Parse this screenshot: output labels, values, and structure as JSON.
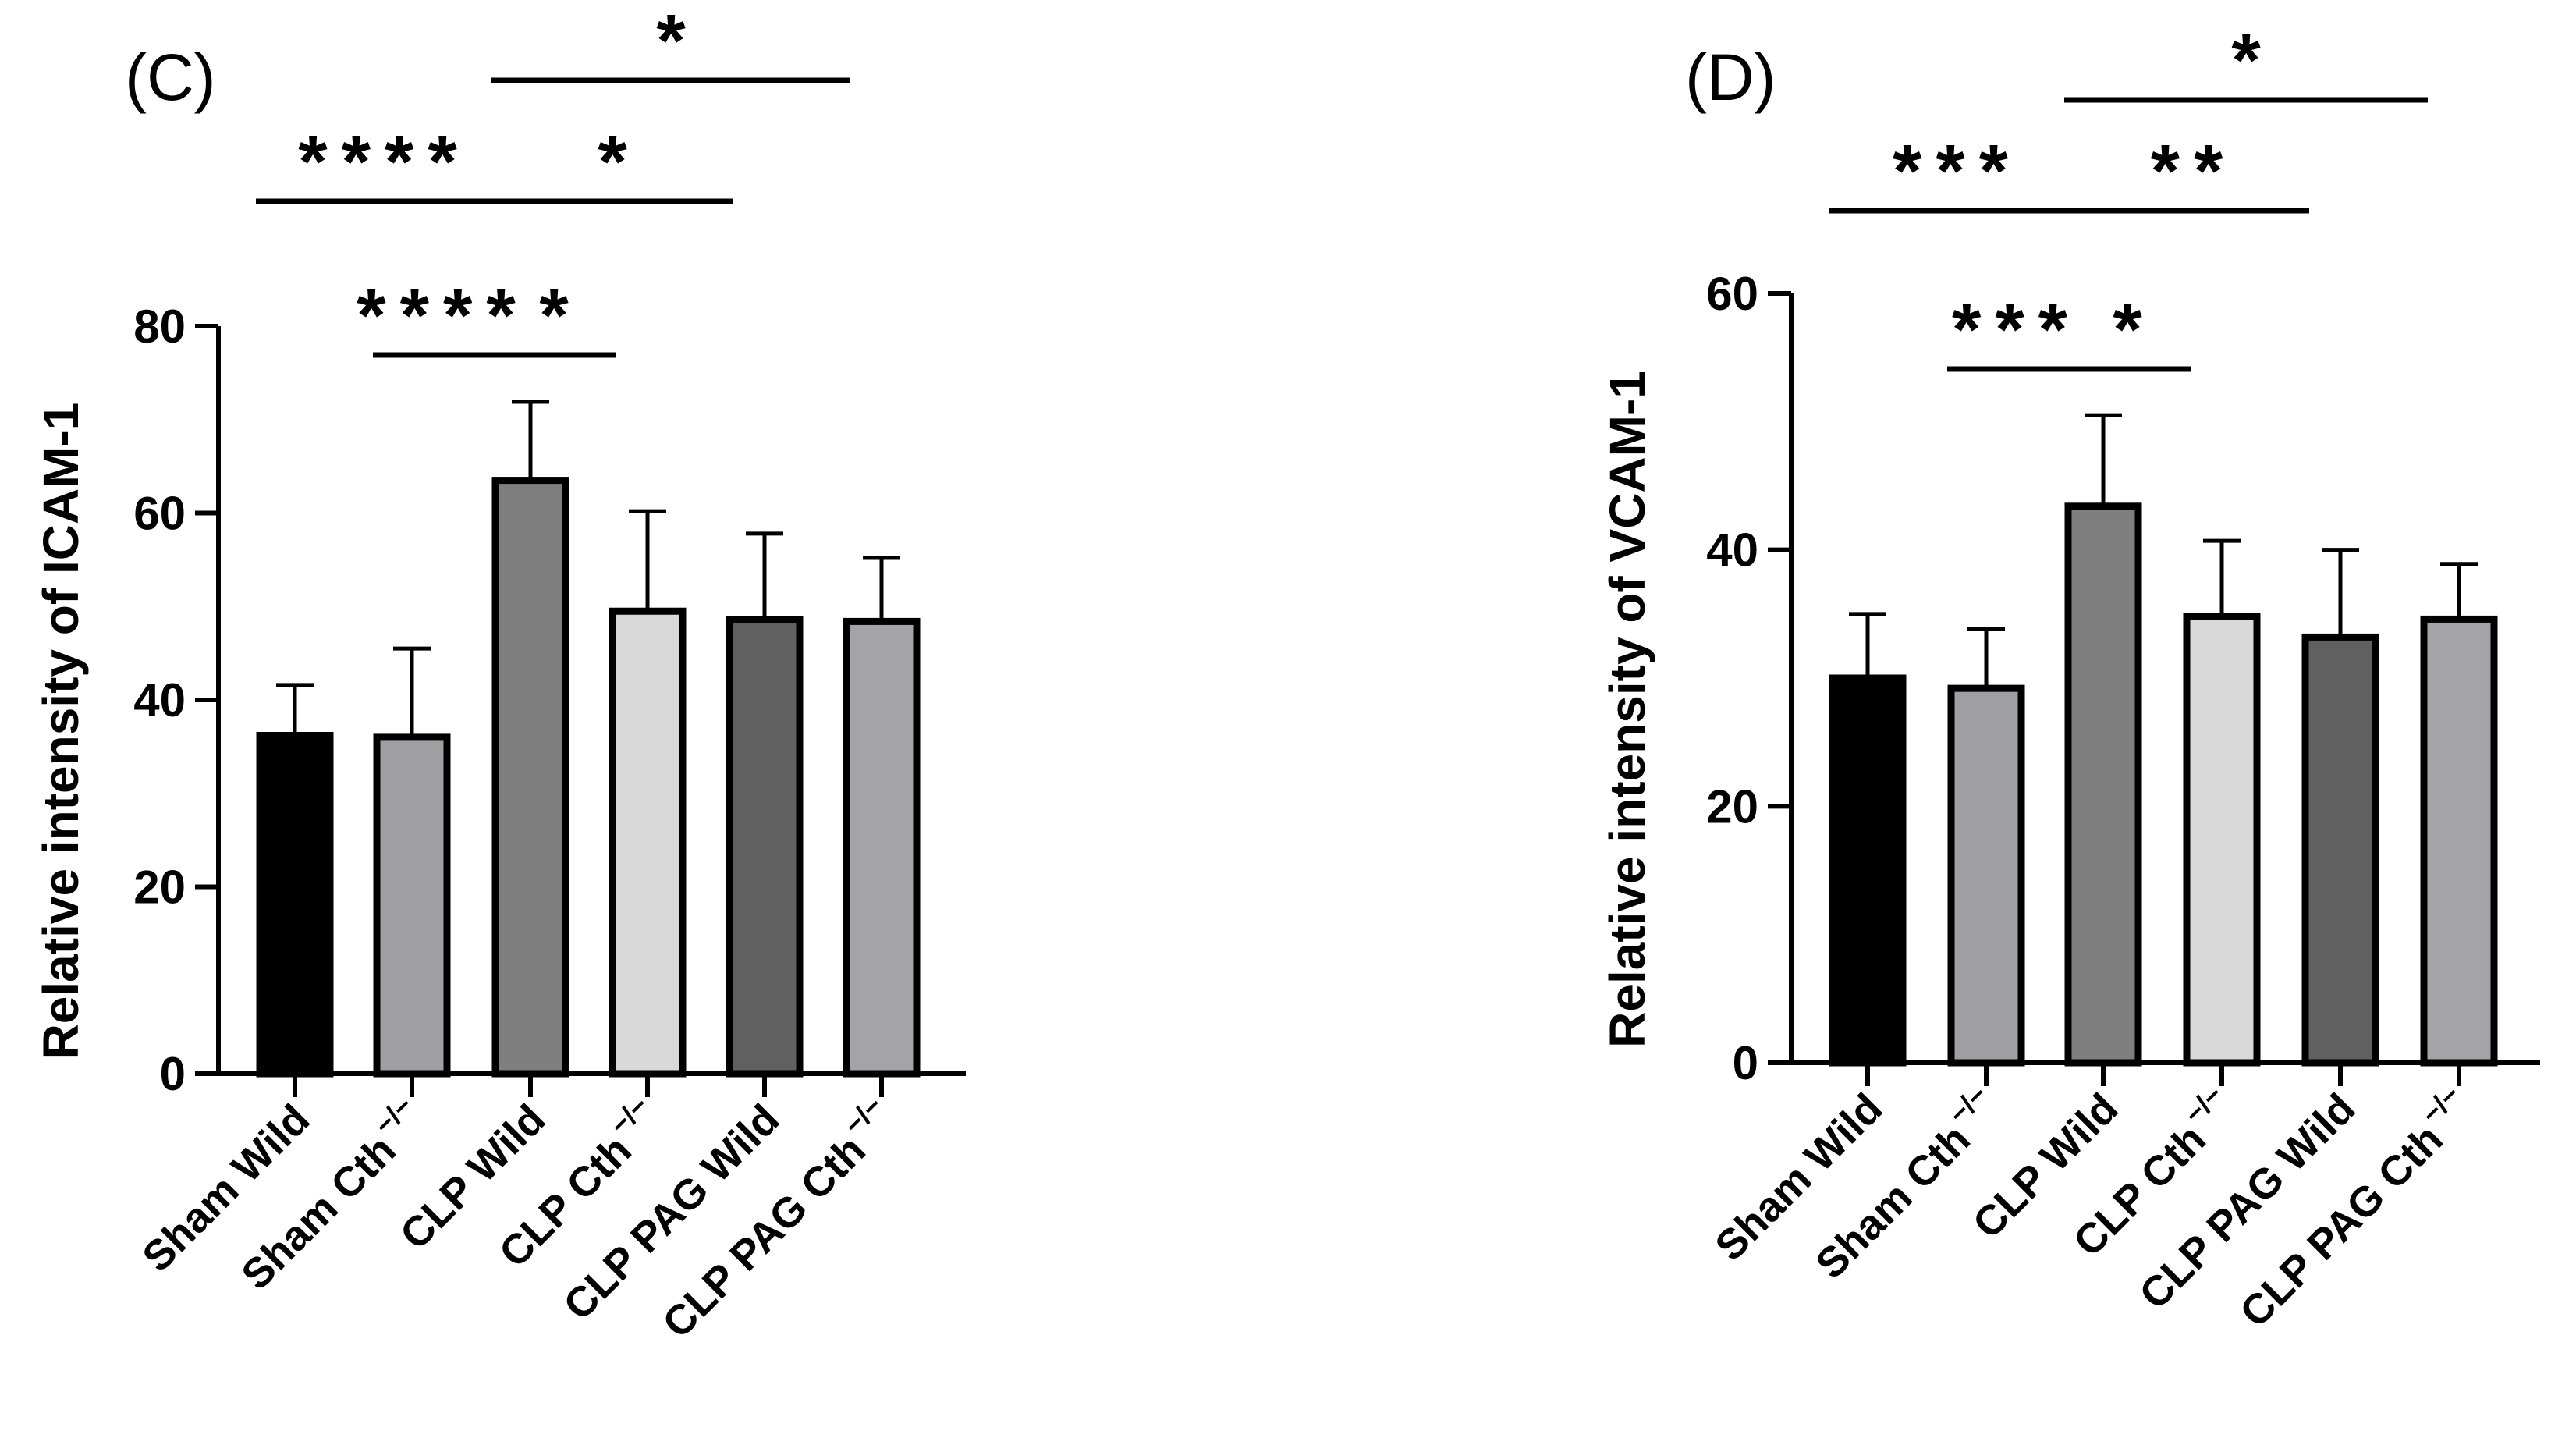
{
  "colors": {
    "axis": "#000000",
    "bar_outline": "#000000",
    "bar_fills": [
      "#000000",
      "#9e9ea3",
      "#7f7f7f",
      "#d9d9d9",
      "#606060",
      "#a3a3a8"
    ]
  },
  "chart_data": [
    {
      "type": "bar",
      "panel": "(C)",
      "title": "",
      "xlabel": "",
      "ylabel": "Relative intensity of ICAM-1",
      "ylim": [
        0,
        80
      ],
      "yticks": [
        "0",
        "20",
        "40",
        "60",
        "80"
      ],
      "categories": [
        {
          "main": "Sham Wild",
          "sup": ""
        },
        {
          "main": "Sham Cth",
          "sup": "−/−"
        },
        {
          "main": "CLP Wild",
          "sup": ""
        },
        {
          "main": "CLP Cth",
          "sup": "−/−"
        },
        {
          "main": "CLP PAG Wild",
          "sup": ""
        },
        {
          "main": "CLP PAG Cth",
          "sup": "−/−"
        }
      ],
      "values": [
        36.2,
        36.0,
        63.5,
        49.5,
        48.6,
        48.4
      ],
      "errors": [
        5.4,
        9.5,
        8.4,
        10.7,
        9.2,
        6.8
      ],
      "significance": [
        {
          "from": 0,
          "to": 2,
          "label": "****",
          "level": 3
        },
        {
          "from": 1,
          "to": 2,
          "label": "****",
          "level": 1
        },
        {
          "from": 2,
          "to": 3,
          "label": "*",
          "level": 1
        },
        {
          "from": 2,
          "to": 4,
          "label": "*",
          "level": 3
        },
        {
          "from": 2,
          "to": 5,
          "label": "*",
          "level": 4
        }
      ]
    },
    {
      "type": "bar",
      "panel": "(D)",
      "title": "",
      "xlabel": "",
      "ylabel": "Relative intensity of VCAM-1",
      "ylim": [
        0,
        60
      ],
      "yticks": [
        "0",
        "20",
        "40",
        "60"
      ],
      "categories": [
        {
          "main": "Sham Wild",
          "sup": ""
        },
        {
          "main": "Sham Cth",
          "sup": "−/−"
        },
        {
          "main": "CLP Wild",
          "sup": ""
        },
        {
          "main": "CLP Cth",
          "sup": "−/−"
        },
        {
          "main": "CLP PAG Wild",
          "sup": ""
        },
        {
          "main": "CLP PAG Cth",
          "sup": "−/−"
        }
      ],
      "values": [
        30.0,
        29.2,
        43.4,
        34.8,
        33.2,
        34.6
      ],
      "errors": [
        5.0,
        4.6,
        7.1,
        5.9,
        6.8,
        4.3
      ],
      "significance": [
        {
          "from": 0,
          "to": 2,
          "label": "***",
          "level": 3
        },
        {
          "from": 1,
          "to": 2,
          "label": "***",
          "level": 1
        },
        {
          "from": 2,
          "to": 3,
          "label": "*",
          "level": 1
        },
        {
          "from": 2,
          "to": 4,
          "label": "**",
          "level": 3
        },
        {
          "from": 2,
          "to": 5,
          "label": "*",
          "level": 4
        }
      ]
    }
  ]
}
